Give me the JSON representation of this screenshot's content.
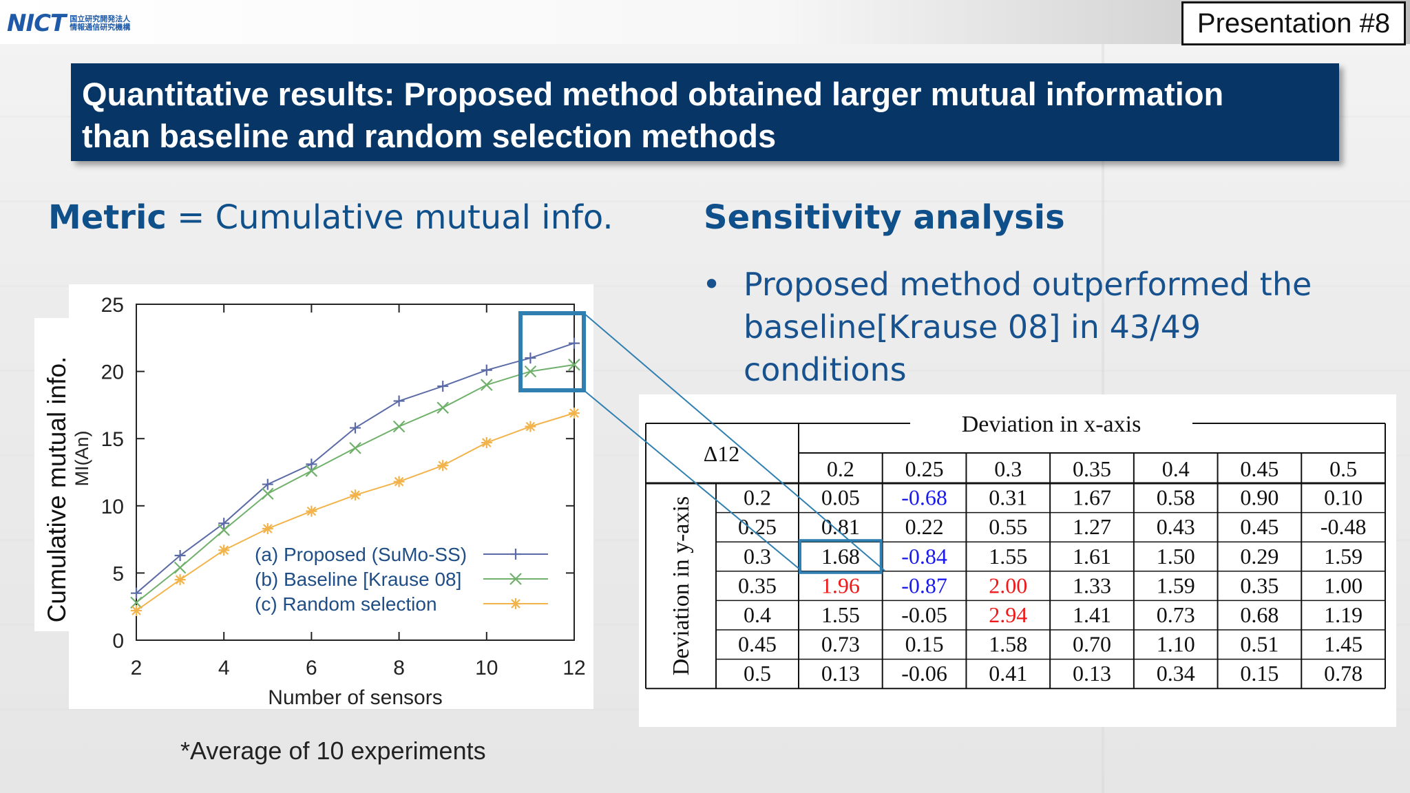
{
  "header": {
    "logo_text": "NICT",
    "logo_sub": "国立研究開発法人 情報通信研究機構",
    "presentation_number": "Presentation #8"
  },
  "title": {
    "line1": "Quantitative results: Proposed method obtained larger mutual information",
    "line2": "than baseline and random selection methods"
  },
  "metric": {
    "bold": "Metric",
    "rest": " = Cumulative mutual info."
  },
  "sensitivity": {
    "title": "Sensitivity analysis",
    "bullet": "Proposed method outperformed the baseline[Krause 08] in 43/49 conditions"
  },
  "footnote": "*Average of 10 experiments",
  "colors": {
    "title_bg": "#063566",
    "accent": "#0f4f8a",
    "highlight": "#2f7fb0",
    "proposed": "#5a6aa6",
    "baseline": "#6fb06a",
    "random": "#f2b34a"
  },
  "chart_data": {
    "type": "line",
    "xlabel": "Number of sensors",
    "ylabel": "Cumulative mutual info.",
    "ylabel2": "MI(An)",
    "xlim": [
      2,
      12
    ],
    "ylim": [
      0,
      25
    ],
    "xticks": [
      2,
      4,
      6,
      8,
      10,
      12
    ],
    "yticks": [
      0,
      5,
      10,
      15,
      20,
      25
    ],
    "x": [
      2,
      3,
      4,
      5,
      6,
      7,
      8,
      9,
      10,
      11,
      12
    ],
    "series": [
      {
        "name": "(a) Proposed (SuMo-SS)",
        "marker": "+",
        "color": "#5a6aa6",
        "values": [
          3.5,
          6.3,
          8.7,
          11.6,
          13.1,
          15.8,
          17.8,
          18.9,
          20.1,
          21.0,
          22.1
        ]
      },
      {
        "name": "(b) Baseline [Krause 08]",
        "marker": "x",
        "color": "#6fb06a",
        "values": [
          2.8,
          5.4,
          8.2,
          10.9,
          12.6,
          14.3,
          15.9,
          17.3,
          19.0,
          20.0,
          20.5
        ]
      },
      {
        "name": "(c) Random selection",
        "marker": "*",
        "color": "#f2b34a",
        "values": [
          2.2,
          4.5,
          6.7,
          8.3,
          9.6,
          10.8,
          11.8,
          13.0,
          14.7,
          15.9,
          16.9
        ]
      }
    ],
    "legend": "bottom-right",
    "grid": false
  },
  "table": {
    "corner": "Δ12",
    "col_header": "Deviation in x-axis",
    "row_header": "Deviation in y-axis",
    "cols": [
      "0.2",
      "0.25",
      "0.3",
      "0.35",
      "0.4",
      "0.45",
      "0.5"
    ],
    "rows": [
      {
        "label": "0.2",
        "cells": [
          "0.05",
          "-0.68",
          "0.31",
          "1.67",
          "0.58",
          "0.90",
          "0.10"
        ]
      },
      {
        "label": "0.25",
        "cells": [
          "0.81",
          "0.22",
          "0.55",
          "1.27",
          "0.43",
          "0.45",
          "-0.48"
        ]
      },
      {
        "label": "0.3",
        "cells": [
          "1.68",
          "-0.84",
          "1.55",
          "1.61",
          "1.50",
          "0.29",
          "1.59"
        ]
      },
      {
        "label": "0.35",
        "cells": [
          "1.96",
          "-0.87",
          "2.00",
          "1.33",
          "1.59",
          "0.35",
          "1.00"
        ]
      },
      {
        "label": "0.4",
        "cells": [
          "1.55",
          "-0.05",
          "2.94",
          "1.41",
          "0.73",
          "0.68",
          "1.19"
        ]
      },
      {
        "label": "0.45",
        "cells": [
          "0.73",
          "0.15",
          "1.58",
          "0.70",
          "1.10",
          "0.51",
          "1.45"
        ]
      },
      {
        "label": "0.5",
        "cells": [
          "0.13",
          "-0.06",
          "0.41",
          "0.13",
          "0.34",
          "0.15",
          "0.78"
        ]
      }
    ],
    "blue_cells": [
      [
        0,
        1
      ],
      [
        2,
        1
      ],
      [
        3,
        1
      ]
    ],
    "red_cells": [
      [
        3,
        0
      ],
      [
        3,
        2
      ],
      [
        4,
        2
      ]
    ],
    "highlight_cell": [
      2,
      0
    ]
  }
}
